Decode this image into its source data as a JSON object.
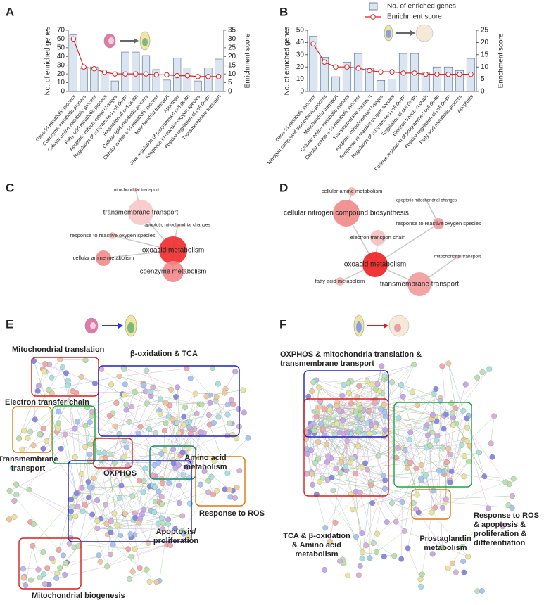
{
  "panel_letters": [
    "A",
    "B",
    "C",
    "D",
    "E",
    "F"
  ],
  "chart_data": [
    {
      "type": "bar",
      "ylabel": "No. of enriched genes",
      "y2label": "Enrichment score",
      "categories": [
        "Oxoacid metabolic process",
        "Coenzyme metabolic process",
        "Cellular amine metabolic process",
        "Fatty acid metabolic process",
        "Apoptotic mitochondrial changes",
        "Regulation of programmed cell death",
        "Regulation of cell death",
        "Cellular lipid metabolic process",
        "Cellular amino acid metabolic process",
        "Mitochondrial transport",
        "Apoptosis",
        "-itive regulation of programmed cell death",
        "Response to reactive oxygen species",
        "Positive regulation of cell death",
        "Transmembrane transport"
      ],
      "series": [
        {
          "color": "#dbe5f1",
          "values": [
            65,
            26,
            28,
            22,
            12,
            45,
            45,
            41,
            25,
            13,
            38,
            27,
            12,
            27,
            37
          ]
        },
        {
          "color": "#e02020",
          "axis": "y2",
          "values": [
            30,
            14,
            13,
            11,
            10,
            10,
            10,
            10,
            9.5,
            9.5,
            9,
            9,
            8.5,
            8.5,
            8.5
          ]
        }
      ],
      "ylim": [
        0,
        70
      ],
      "yticks": [
        0,
        10,
        20,
        30,
        40,
        50,
        60,
        70
      ],
      "y2lim": [
        0,
        35
      ],
      "y2ticks": [
        0,
        5,
        10,
        15,
        20,
        25,
        30,
        35
      ]
    },
    {
      "type": "bar",
      "ylabel": "No. of enriched genes",
      "y2label": "Enrichment score",
      "legend": "top",
      "categories": [
        "Oxoacid metabolic process",
        "Nitrogen compound biosynthetic process",
        "Mitochondrial transport",
        "Cellular amine metabolic process",
        "Cellular amino acid metabolic process",
        "Transmembrane transport",
        "Apoptotic mitochondrial changes",
        "Response to reactive oxygen species",
        "Regulation of programmed cell death",
        "Regulation of cell death",
        "Electron transport chain",
        "Positive regulation of programmed cell death",
        "Positive regulation of cell death",
        "Fatty acid metabolic process",
        "Apoptosis"
      ],
      "series": [
        {
          "name": "No. of enriched genes",
          "color": "#dbe5f1",
          "values": [
            45,
            28,
            12,
            24,
            31,
            19,
            9,
            10,
            31,
            31,
            15,
            20,
            20,
            17,
            27
          ]
        },
        {
          "name": "Enrichment score",
          "color": "#e02020",
          "axis": "y2",
          "values": [
            19.5,
            12,
            10,
            10,
            9.5,
            8.5,
            8,
            8,
            7.5,
            7.5,
            7,
            7,
            7,
            7,
            7
          ]
        }
      ],
      "ylim": [
        0,
        50
      ],
      "yticks": [
        0,
        10,
        20,
        30,
        40,
        50
      ],
      "y2lim": [
        0,
        25
      ],
      "y2ticks": [
        0,
        5,
        10,
        15,
        20,
        25
      ]
    }
  ],
  "network_C": {
    "nodes": [
      "mitochondrial transport",
      "transmembrane transport",
      "apoptotic mitochondrial changes",
      "response to reactive oxygen species",
      "oxoacid metabolism",
      "cellular amine metabolism",
      "coenzyme metabolism"
    ]
  },
  "network_D": {
    "nodes": [
      "cellular amine metabolism",
      "apoptotic mitochondrial changes",
      "cellular nitrogen compound biosynthesis",
      "response to reactive oxygen species",
      "electron transport chain",
      "mitochondrial transport",
      "oxoacid metabolism",
      "fatty acid metabolism",
      "transmembrane transport"
    ]
  },
  "network_E": {
    "groups": [
      {
        "label": [
          "Mitochondrial translation"
        ]
      },
      {
        "label": [
          "β-oxidation & TCA"
        ]
      },
      {
        "label": [
          "Electron transfer chain"
        ]
      },
      {
        "label": [
          "Transmembrane",
          "transport"
        ]
      },
      {
        "label": [
          "OXPHOS"
        ]
      },
      {
        "label": [
          "Amino acid",
          "metabolism"
        ]
      },
      {
        "label": [
          "Response to ROS"
        ]
      },
      {
        "label": [
          "Apoptosis/",
          "proliferation"
        ]
      },
      {
        "label": [
          "Mitochondrial biogenesis"
        ]
      }
    ]
  },
  "network_F": {
    "groups": [
      {
        "label": [
          "OXPHOS & mitochondria translation &",
          "transmembrane transport"
        ]
      },
      {
        "label": [
          "TCA & β-oxidation",
          "& Amino acid",
          "metabolism"
        ]
      },
      {
        "label": [
          "Response to ROS",
          "& apoptosis &",
          "proliferation &",
          "differentiation"
        ]
      },
      {
        "label": [
          "Prostaglandin",
          "metabolism"
        ]
      }
    ]
  }
}
